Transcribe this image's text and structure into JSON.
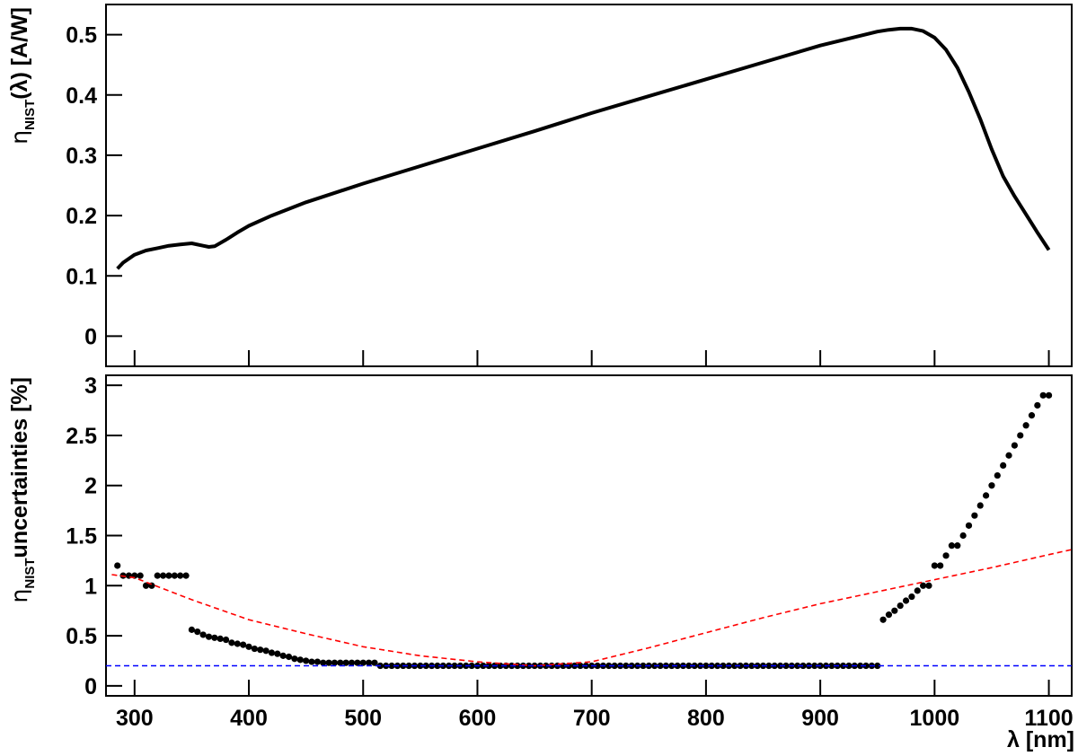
{
  "chart_data": [
    {
      "type": "line",
      "ylabel": {
        "symbol": "η",
        "subscript": "NIST",
        "rest": "(λ)  [A/W]"
      },
      "xlim": [
        275,
        1120
      ],
      "xticks": [
        300,
        400,
        500,
        600,
        700,
        800,
        900,
        1000,
        1100
      ],
      "ylim": [
        -0.05,
        0.55
      ],
      "yticks": [
        0,
        0.1,
        0.2,
        0.3,
        0.4,
        0.5
      ],
      "show_xtick_labels": false,
      "series": [
        {
          "color": "#000000",
          "style": "solid",
          "x": [
            285,
            290,
            300,
            310,
            320,
            330,
            340,
            350,
            360,
            365,
            370,
            380,
            390,
            400,
            420,
            450,
            500,
            550,
            600,
            650,
            700,
            750,
            800,
            850,
            900,
            950,
            960,
            970,
            980,
            990,
            1000,
            1010,
            1020,
            1030,
            1040,
            1050,
            1060,
            1070,
            1080,
            1090,
            1100
          ],
          "values": [
            0.112,
            0.122,
            0.135,
            0.142,
            0.146,
            0.15,
            0.152,
            0.154,
            0.15,
            0.148,
            0.149,
            0.16,
            0.172,
            0.183,
            0.2,
            0.222,
            0.253,
            0.282,
            0.311,
            0.34,
            0.37,
            0.398,
            0.426,
            0.454,
            0.482,
            0.505,
            0.508,
            0.51,
            0.51,
            0.506,
            0.495,
            0.475,
            0.445,
            0.405,
            0.36,
            0.31,
            0.265,
            0.232,
            0.202,
            0.172,
            0.143
          ]
        }
      ]
    },
    {
      "type": "scatter",
      "ylabel": {
        "symbol": "η",
        "subscript": "NIST",
        "rest": "uncertainties [%]"
      },
      "xlabel": "λ [nm]",
      "xlim": [
        275,
        1120
      ],
      "xticks": [
        300,
        400,
        500,
        600,
        700,
        800,
        900,
        1000,
        1100
      ],
      "ylim": [
        -0.1,
        3.1
      ],
      "yticks": [
        0,
        0.5,
        1,
        1.5,
        2,
        2.5,
        3
      ],
      "show_xtick_labels": true,
      "series": [
        {
          "color": "#000000",
          "style": "dots",
          "x": [
            285,
            290,
            295,
            300,
            305,
            310,
            315,
            320,
            325,
            330,
            335,
            340,
            345,
            350,
            355,
            360,
            365,
            370,
            375,
            380,
            385,
            390,
            395,
            400,
            405,
            410,
            415,
            420,
            425,
            430,
            435,
            440,
            445,
            450,
            455,
            460,
            465,
            470,
            475,
            480,
            485,
            490,
            495,
            500,
            505,
            510,
            515,
            520,
            525,
            530,
            535,
            540,
            545,
            550,
            555,
            560,
            565,
            570,
            575,
            580,
            585,
            590,
            595,
            600,
            605,
            610,
            615,
            620,
            625,
            630,
            635,
            640,
            645,
            650,
            655,
            660,
            665,
            670,
            675,
            680,
            685,
            690,
            695,
            700,
            705,
            710,
            715,
            720,
            725,
            730,
            735,
            740,
            745,
            750,
            755,
            760,
            765,
            770,
            775,
            780,
            785,
            790,
            795,
            800,
            805,
            810,
            815,
            820,
            825,
            830,
            835,
            840,
            845,
            850,
            855,
            860,
            865,
            870,
            875,
            880,
            885,
            890,
            895,
            900,
            905,
            910,
            915,
            920,
            925,
            930,
            935,
            940,
            945,
            950,
            955,
            960,
            965,
            970,
            975,
            980,
            985,
            990,
            995,
            1000,
            1005,
            1010,
            1015,
            1020,
            1025,
            1030,
            1035,
            1040,
            1045,
            1050,
            1055,
            1060,
            1065,
            1070,
            1075,
            1080,
            1085,
            1090,
            1095,
            1100
          ],
          "values": [
            1.2,
            1.1,
            1.1,
            1.1,
            1.1,
            1.0,
            1.0,
            1.1,
            1.1,
            1.1,
            1.1,
            1.1,
            1.1,
            0.56,
            0.54,
            0.51,
            0.49,
            0.48,
            0.47,
            0.46,
            0.43,
            0.42,
            0.41,
            0.39,
            0.37,
            0.36,
            0.35,
            0.33,
            0.32,
            0.3,
            0.29,
            0.27,
            0.26,
            0.25,
            0.24,
            0.24,
            0.23,
            0.23,
            0.23,
            0.23,
            0.23,
            0.23,
            0.23,
            0.23,
            0.23,
            0.23,
            0.2,
            0.2,
            0.2,
            0.2,
            0.2,
            0.2,
            0.2,
            0.2,
            0.2,
            0.2,
            0.2,
            0.2,
            0.2,
            0.2,
            0.2,
            0.2,
            0.2,
            0.2,
            0.2,
            0.2,
            0.2,
            0.2,
            0.2,
            0.2,
            0.2,
            0.2,
            0.2,
            0.2,
            0.2,
            0.2,
            0.2,
            0.2,
            0.2,
            0.2,
            0.2,
            0.2,
            0.2,
            0.2,
            0.2,
            0.2,
            0.2,
            0.2,
            0.2,
            0.2,
            0.2,
            0.2,
            0.2,
            0.2,
            0.2,
            0.2,
            0.2,
            0.2,
            0.2,
            0.2,
            0.2,
            0.2,
            0.2,
            0.2,
            0.2,
            0.2,
            0.2,
            0.2,
            0.2,
            0.2,
            0.2,
            0.2,
            0.2,
            0.2,
            0.2,
            0.2,
            0.2,
            0.2,
            0.2,
            0.2,
            0.2,
            0.2,
            0.2,
            0.2,
            0.2,
            0.2,
            0.2,
            0.2,
            0.2,
            0.2,
            0.2,
            0.2,
            0.2,
            0.2,
            0.66,
            0.71,
            0.75,
            0.8,
            0.85,
            0.89,
            0.95,
            1.0,
            1.0,
            1.2,
            1.2,
            1.3,
            1.4,
            1.4,
            1.5,
            1.6,
            1.7,
            1.8,
            1.9,
            2.0,
            2.1,
            2.2,
            2.3,
            2.4,
            2.5,
            2.6,
            2.7,
            2.8,
            2.9,
            2.9
          ]
        },
        {
          "color": "#ff0000",
          "style": "dashed",
          "x": [
            280,
            300,
            350,
            400,
            450,
            500,
            550,
            600,
            650,
            700,
            750,
            800,
            850,
            900,
            950,
            1000,
            1050,
            1100,
            1120
          ],
          "values": [
            1.11,
            1.08,
            0.86,
            0.66,
            0.52,
            0.39,
            0.3,
            0.24,
            0.2,
            0.24,
            0.38,
            0.53,
            0.68,
            0.82,
            0.94,
            1.06,
            1.18,
            1.31,
            1.36
          ]
        },
        {
          "color": "#0000ff",
          "style": "dashed",
          "x": [
            275,
            1120
          ],
          "values": [
            0.2,
            0.2
          ]
        }
      ]
    }
  ]
}
